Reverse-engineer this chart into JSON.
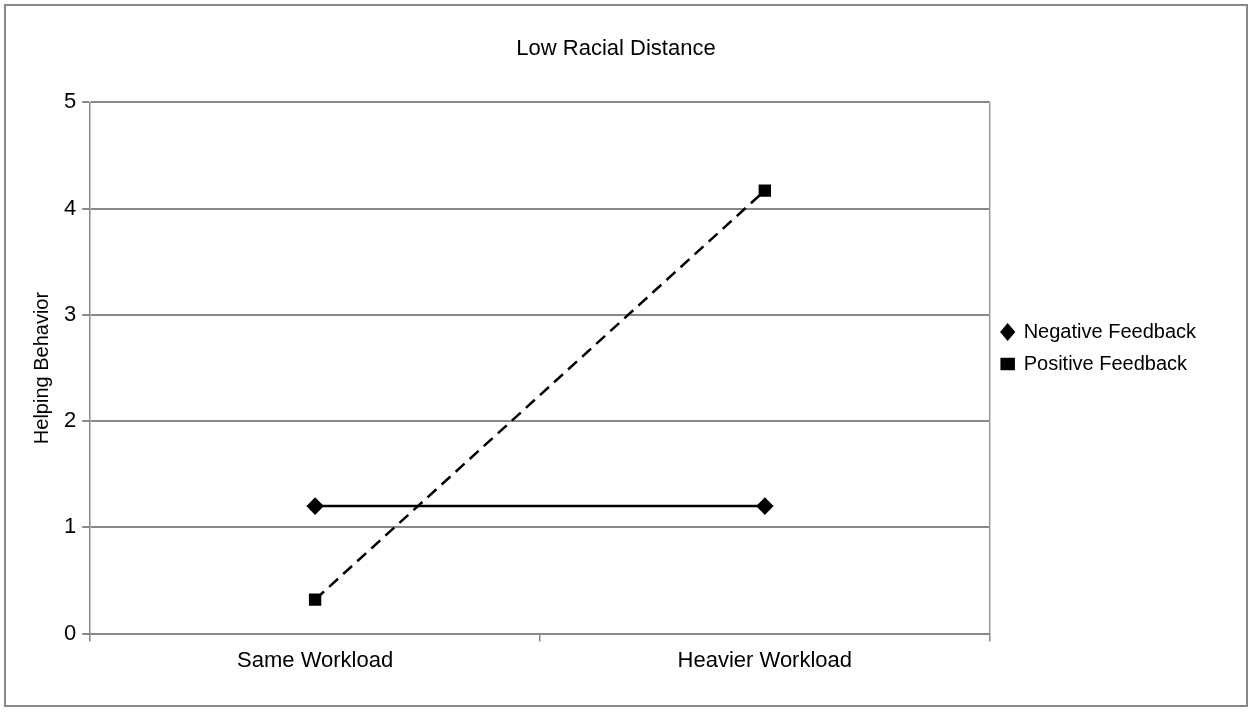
{
  "chart_data": {
    "type": "line",
    "title": "Low Racial Distance",
    "ylabel": "Helping Behavior",
    "categories": [
      "Same Workload",
      "Heavier Workload"
    ],
    "series": [
      {
        "name": "Negative Feedback",
        "color": "#000000",
        "values": [
          1.2,
          1.2
        ],
        "marker": "diamond",
        "line_style": "solid"
      },
      {
        "name": "Positive Feedback",
        "color": "#000000",
        "values": [
          0.32,
          4.17
        ],
        "marker": "square",
        "line_style": "dashed"
      }
    ],
    "ylim": [
      0,
      5
    ],
    "yticks": [
      0,
      1,
      2,
      3,
      4,
      5
    ],
    "grid": "y",
    "legend": "right"
  }
}
